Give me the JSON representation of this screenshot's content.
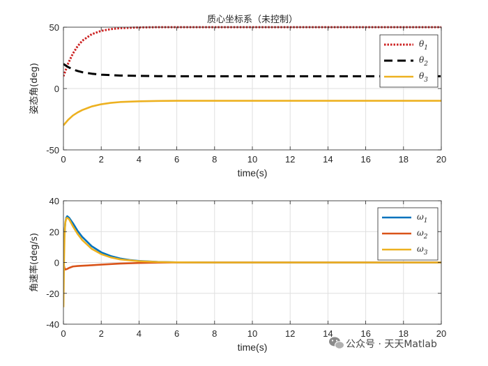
{
  "watermark": {
    "text": "公众号 · 天天Matlab"
  },
  "chart_data": [
    {
      "type": "line",
      "title": "质心坐标系（未控制）",
      "xlabel": "time(s)",
      "ylabel": "姿态角(deg)",
      "xlim": [
        0,
        20
      ],
      "ylim": [
        -50,
        50
      ],
      "xticks": [
        0,
        2,
        4,
        6,
        8,
        10,
        12,
        14,
        16,
        18,
        20
      ],
      "yticks": [
        -50,
        0,
        50
      ],
      "grid": true,
      "legend_position": "top-right",
      "series": [
        {
          "name": "θ",
          "sub": "1",
          "color": "#cc2222",
          "style": "dotted",
          "x": [
            0,
            0.25,
            0.5,
            0.75,
            1,
            1.5,
            2,
            2.5,
            3,
            4,
            5,
            6,
            8,
            10,
            20
          ],
          "y": [
            10,
            20.5,
            28.5,
            34.5,
            39,
            44.3,
            47,
            48.4,
            49.2,
            49.8,
            50,
            50,
            50,
            50,
            50
          ]
        },
        {
          "name": "θ",
          "sub": "2",
          "color": "#000000",
          "style": "dashed",
          "x": [
            0,
            0.25,
            0.5,
            0.75,
            1,
            1.5,
            2,
            3,
            4,
            5,
            6,
            8,
            10,
            20
          ],
          "y": [
            20,
            17.5,
            15.6,
            14.3,
            13.3,
            12.1,
            11.3,
            10.6,
            10.3,
            10.1,
            10,
            10,
            10,
            10
          ]
        },
        {
          "name": "θ",
          "sub": "3",
          "color": "#edb120",
          "style": "solid",
          "x": [
            0,
            0.25,
            0.5,
            0.75,
            1,
            1.5,
            2,
            2.5,
            3,
            4,
            5,
            6,
            8,
            10,
            20
          ],
          "y": [
            -30,
            -25.5,
            -22,
            -19.5,
            -17.5,
            -14.6,
            -12.8,
            -11.7,
            -11,
            -10.4,
            -10.1,
            -10,
            -10,
            -10,
            -10
          ]
        }
      ]
    },
    {
      "type": "line",
      "title": "",
      "xlabel": "time(s)",
      "ylabel": "角速率(deg/s)",
      "xlim": [
        0,
        20
      ],
      "ylim": [
        -40,
        40
      ],
      "xticks": [
        0,
        2,
        4,
        6,
        8,
        10,
        12,
        14,
        16,
        18,
        20
      ],
      "yticks": [
        -40,
        -20,
        0,
        20,
        40
      ],
      "grid": true,
      "legend_position": "top-right",
      "series": [
        {
          "name": "ω",
          "sub": "1",
          "color": "#0072bd",
          "style": "solid",
          "x": [
            0,
            0.05,
            0.1,
            0.15,
            0.2,
            0.3,
            0.5,
            0.75,
            1,
            1.5,
            2,
            2.5,
            3,
            3.5,
            4,
            5,
            6,
            8,
            20
          ],
          "y": [
            0,
            18,
            26,
            29,
            30,
            29,
            25.5,
            20.5,
            16.5,
            10.5,
            6.6,
            4.2,
            2.6,
            1.6,
            1.0,
            0.4,
            0.1,
            0,
            0
          ]
        },
        {
          "name": "ω",
          "sub": "2",
          "color": "#d95319",
          "style": "solid",
          "x": [
            0,
            0.05,
            0.1,
            0.2,
            0.3,
            0.5,
            0.75,
            1,
            1.5,
            2,
            3,
            4,
            5,
            6,
            8,
            20
          ],
          "y": [
            0,
            -3.5,
            -4.6,
            -4.2,
            -3.5,
            -2.6,
            -2.3,
            -2.1,
            -1.8,
            -1.4,
            -0.7,
            -0.3,
            -0.1,
            0,
            0,
            0
          ]
        },
        {
          "name": "ω",
          "sub": "3",
          "color": "#edb120",
          "style": "solid",
          "x": [
            0,
            0.03,
            0.06,
            0.1,
            0.15,
            0.2,
            0.3,
            0.5,
            0.75,
            1,
            1.5,
            2,
            2.5,
            3,
            4,
            5,
            6,
            8,
            20
          ],
          "y": [
            -29,
            0,
            18,
            26,
            28.5,
            29,
            28,
            23.5,
            18.5,
            14.5,
            8.8,
            5.4,
            3.3,
            2.0,
            0.8,
            0.3,
            0.1,
            0,
            0
          ]
        }
      ]
    }
  ]
}
